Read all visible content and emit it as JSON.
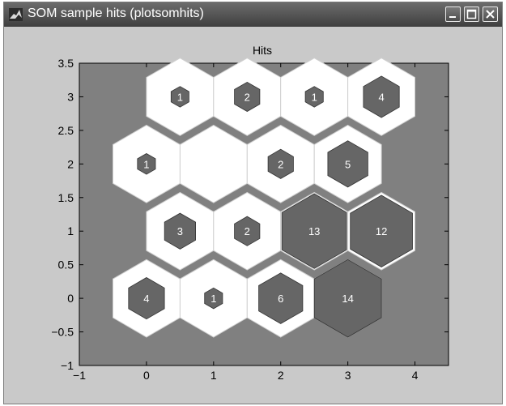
{
  "window": {
    "title": "SOM sample hits (plotsomhits)",
    "icons": [
      "matlab-logo-icon",
      "minimize-icon",
      "maximize-icon",
      "close-icon"
    ]
  },
  "colors": {
    "window_bg": "#c9c9c9",
    "axes_bg": "#808080",
    "hex_fill": "#ffffff",
    "hex_edge": "#cfcfcf",
    "hit_fill": "#666666",
    "hit_edge": "#333333",
    "hit_text": "#ffffff"
  },
  "chart_data": {
    "type": "heatmap",
    "title": "Hits",
    "xlabel": "",
    "ylabel": "",
    "xlim": [
      -1,
      4.5
    ],
    "ylim": [
      -1,
      3.5
    ],
    "xticks": [
      -1,
      0,
      1,
      2,
      3,
      4
    ],
    "yticks": [
      -1,
      -0.5,
      0,
      0.5,
      1,
      1.5,
      2,
      2.5,
      3,
      3.5
    ],
    "xtick_labels": [
      "−1",
      "0",
      "1",
      "2",
      "3",
      "4"
    ],
    "ytick_labels": [
      "−1",
      "−0.5",
      "0",
      "0.5",
      "1",
      "1.5",
      "2",
      "2.5",
      "3",
      "3.5"
    ],
    "grid": false,
    "neurons": [
      {
        "x": 0,
        "y": 0,
        "hits": 4
      },
      {
        "x": 1,
        "y": 0,
        "hits": 1
      },
      {
        "x": 2,
        "y": 0,
        "hits": 6
      },
      {
        "x": 3,
        "y": 0,
        "hits": 14
      },
      {
        "x": 0.5,
        "y": 1,
        "hits": 3
      },
      {
        "x": 1.5,
        "y": 1,
        "hits": 2
      },
      {
        "x": 2.5,
        "y": 1,
        "hits": 13
      },
      {
        "x": 3.5,
        "y": 1,
        "hits": 12
      },
      {
        "x": 0,
        "y": 2,
        "hits": 1
      },
      {
        "x": 1,
        "y": 2,
        "hits": 0
      },
      {
        "x": 2,
        "y": 2,
        "hits": 2
      },
      {
        "x": 3,
        "y": 2,
        "hits": 5
      },
      {
        "x": 0.5,
        "y": 3,
        "hits": 1
      },
      {
        "x": 1.5,
        "y": 3,
        "hits": 2
      },
      {
        "x": 2.5,
        "y": 3,
        "hits": 1
      },
      {
        "x": 3.5,
        "y": 3,
        "hits": 4
      }
    ]
  }
}
